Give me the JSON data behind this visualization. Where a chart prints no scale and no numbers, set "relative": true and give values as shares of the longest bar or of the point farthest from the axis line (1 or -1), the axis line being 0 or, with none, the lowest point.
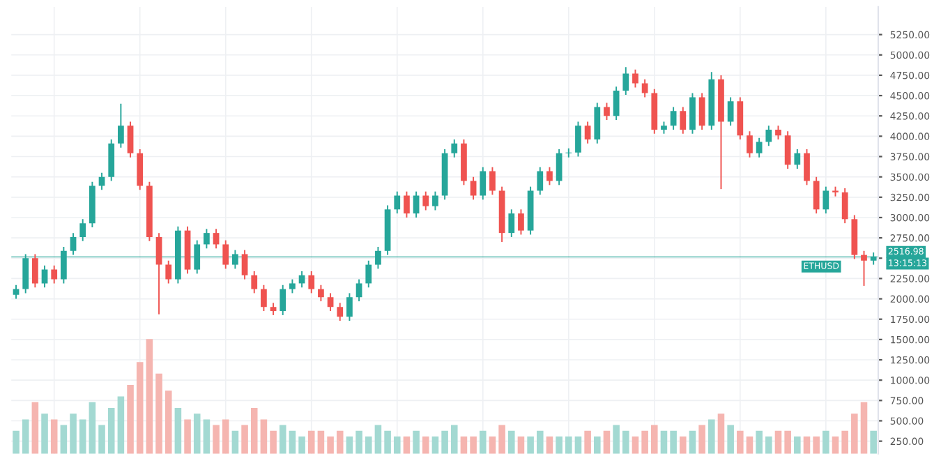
{
  "chart_data": [
    {
      "type": "candlestick",
      "categories": [
        null,
        null,
        null,
        null,
        null,
        null,
        null,
        null,
        null,
        null,
        null,
        null,
        null,
        null,
        null,
        null,
        null,
        null,
        null,
        null,
        null,
        null,
        null,
        null,
        null,
        null,
        null,
        null,
        null,
        null,
        null,
        null,
        null,
        null,
        null,
        null,
        null,
        null,
        null,
        null,
        null,
        null,
        null,
        null,
        null,
        null,
        null,
        null,
        null,
        null,
        null,
        null,
        null,
        null,
        null,
        null,
        null,
        null,
        null,
        null,
        null,
        null,
        null,
        null,
        null,
        null,
        null,
        null,
        null,
        null,
        null,
        null,
        null,
        null,
        null,
        null,
        null,
        null,
        null,
        null,
        null,
        null,
        null,
        null,
        null,
        null,
        null,
        null,
        null,
        null,
        null
      ],
      "ohlc": [
        [
          2050,
          2170,
          2000,
          2120
        ],
        [
          2120,
          2550,
          2070,
          2500
        ],
        [
          2500,
          2550,
          2140,
          2190
        ],
        [
          2190,
          2410,
          2140,
          2360
        ],
        [
          2360,
          2410,
          2190,
          2240
        ],
        [
          2240,
          2640,
          2190,
          2590
        ],
        [
          2590,
          2810,
          2540,
          2760
        ],
        [
          2760,
          2980,
          2710,
          2930
        ],
        [
          2930,
          3440,
          2880,
          3390
        ],
        [
          3390,
          3550,
          3340,
          3500
        ],
        [
          3500,
          3960,
          3450,
          3910
        ],
        [
          3910,
          4400,
          3860,
          4130
        ],
        [
          4130,
          4180,
          3740,
          3790
        ],
        [
          3790,
          3840,
          3340,
          3390
        ],
        [
          3390,
          3440,
          2710,
          2760
        ],
        [
          2760,
          2810,
          1810,
          2420
        ],
        [
          2420,
          2470,
          2190,
          2240
        ],
        [
          2240,
          2890,
          2190,
          2840
        ],
        [
          2840,
          2890,
          2310,
          2360
        ],
        [
          2360,
          2720,
          2310,
          2670
        ],
        [
          2670,
          2860,
          2620,
          2810
        ],
        [
          2810,
          2860,
          2620,
          2670
        ],
        [
          2670,
          2720,
          2370,
          2420
        ],
        [
          2420,
          2600,
          2370,
          2550
        ],
        [
          2550,
          2600,
          2240,
          2290
        ],
        [
          2290,
          2340,
          2070,
          2120
        ],
        [
          2120,
          2170,
          1850,
          1900
        ],
        [
          1900,
          1950,
          1800,
          1850
        ],
        [
          1850,
          2170,
          1800,
          2120
        ],
        [
          2120,
          2240,
          2070,
          2190
        ],
        [
          2190,
          2340,
          2140,
          2290
        ],
        [
          2290,
          2340,
          2070,
          2120
        ],
        [
          2120,
          2170,
          1970,
          2020
        ],
        [
          2020,
          2070,
          1850,
          1900
        ],
        [
          1900,
          1950,
          1730,
          1780
        ],
        [
          1780,
          2070,
          1730,
          2020
        ],
        [
          2020,
          2240,
          1970,
          2190
        ],
        [
          2190,
          2470,
          2140,
          2420
        ],
        [
          2420,
          2640,
          2370,
          2590
        ],
        [
          2590,
          3150,
          2540,
          3100
        ],
        [
          3100,
          3320,
          3050,
          3270
        ],
        [
          3270,
          3320,
          3000,
          3050
        ],
        [
          3050,
          3320,
          3000,
          3270
        ],
        [
          3270,
          3320,
          3090,
          3140
        ],
        [
          3140,
          3320,
          3090,
          3270
        ],
        [
          3270,
          3840,
          3220,
          3790
        ],
        [
          3790,
          3960,
          3740,
          3910
        ],
        [
          3910,
          3960,
          3400,
          3450
        ],
        [
          3450,
          3500,
          3220,
          3270
        ],
        [
          3270,
          3620,
          3220,
          3570
        ],
        [
          3570,
          3620,
          3280,
          3330
        ],
        [
          3330,
          3380,
          2700,
          2810
        ],
        [
          2810,
          3100,
          2760,
          3050
        ],
        [
          3050,
          3100,
          2790,
          2840
        ],
        [
          2840,
          3380,
          2790,
          3330
        ],
        [
          3330,
          3620,
          3280,
          3570
        ],
        [
          3570,
          3620,
          3400,
          3450
        ],
        [
          3450,
          3840,
          3400,
          3790
        ],
        [
          3790,
          3850,
          3740,
          3800
        ],
        [
          3800,
          4180,
          3750,
          4130
        ],
        [
          4130,
          4180,
          3910,
          3960
        ],
        [
          3960,
          4410,
          3910,
          4360
        ],
        [
          4360,
          4410,
          4200,
          4250
        ],
        [
          4250,
          4610,
          4200,
          4560
        ],
        [
          4560,
          4850,
          4510,
          4770
        ],
        [
          4770,
          4820,
          4600,
          4650
        ],
        [
          4650,
          4700,
          4480,
          4530
        ],
        [
          4530,
          4580,
          4030,
          4080
        ],
        [
          4080,
          4180,
          4030,
          4130
        ],
        [
          4130,
          4360,
          4080,
          4310
        ],
        [
          4310,
          4360,
          4030,
          4080
        ],
        [
          4080,
          4530,
          4030,
          4480
        ],
        [
          4480,
          4530,
          4080,
          4130
        ],
        [
          4130,
          4790,
          4080,
          4700
        ],
        [
          4700,
          4750,
          3350,
          4180
        ],
        [
          4180,
          4480,
          4130,
          4430
        ],
        [
          4430,
          4480,
          3960,
          4010
        ],
        [
          4010,
          4060,
          3740,
          3790
        ],
        [
          3790,
          3980,
          3740,
          3930
        ],
        [
          3930,
          4130,
          3880,
          4080
        ],
        [
          4080,
          4130,
          3960,
          4010
        ],
        [
          4010,
          4060,
          3600,
          3650
        ],
        [
          3650,
          3840,
          3600,
          3790
        ],
        [
          3790,
          3840,
          3400,
          3450
        ],
        [
          3450,
          3500,
          3050,
          3100
        ],
        [
          3100,
          3380,
          3050,
          3330
        ],
        [
          3330,
          3380,
          3260,
          3310
        ],
        [
          3310,
          3360,
          2930,
          2980
        ],
        [
          2980,
          3030,
          2490,
          2540
        ],
        [
          2540,
          2590,
          2160,
          2470
        ],
        [
          2470,
          2570,
          2420,
          2520
        ]
      ],
      "colors": [
        "#26a69a",
        "#26a69a",
        "#ef5350",
        "#26a69a",
        "#ef5350",
        "#26a69a",
        "#26a69a",
        "#26a69a",
        "#26a69a",
        "#26a69a",
        "#26a69a",
        "#26a69a",
        "#ef5350",
        "#ef5350",
        "#ef5350",
        "#ef5350",
        "#ef5350",
        "#26a69a",
        "#ef5350",
        "#26a69a",
        "#26a69a",
        "#ef5350",
        "#ef5350",
        "#26a69a",
        "#ef5350",
        "#ef5350",
        "#ef5350",
        "#ef5350",
        "#26a69a",
        "#26a69a",
        "#26a69a",
        "#ef5350",
        "#ef5350",
        "#ef5350",
        "#ef5350",
        "#26a69a",
        "#26a69a",
        "#26a69a",
        "#26a69a",
        "#26a69a",
        "#26a69a",
        "#ef5350",
        "#26a69a",
        "#ef5350",
        "#26a69a",
        "#26a69a",
        "#26a69a",
        "#ef5350",
        "#ef5350",
        "#26a69a",
        "#ef5350",
        "#ef5350",
        "#26a69a",
        "#ef5350",
        "#26a69a",
        "#26a69a",
        "#ef5350",
        "#26a69a",
        "#26a69a",
        "#26a69a",
        "#ef5350",
        "#26a69a",
        "#ef5350",
        "#26a69a",
        "#26a69a",
        "#ef5350",
        "#ef5350",
        "#ef5350",
        "#26a69a",
        "#26a69a",
        "#ef5350",
        "#26a69a",
        "#ef5350",
        "#26a69a",
        "#ef5350",
        "#26a69a",
        "#ef5350",
        "#ef5350",
        "#26a69a",
        "#26a69a",
        "#ef5350",
        "#ef5350",
        "#26a69a",
        "#ef5350",
        "#ef5350",
        "#26a69a",
        "#ef5350",
        "#ef5350",
        "#ef5350",
        "#ef5350",
        "#26a69a"
      ],
      "ylim": [
        95,
        5590
      ],
      "yticks": [
        {
          "value": 250,
          "label": "250.00"
        },
        {
          "value": 500,
          "label": "500.00"
        },
        {
          "value": 750,
          "label": "750.00"
        },
        {
          "value": 1000,
          "label": "1000.00"
        },
        {
          "value": 1250,
          "label": "1250.00"
        },
        {
          "value": 1500,
          "label": "1500.00"
        },
        {
          "value": 1750,
          "label": "1750.00"
        },
        {
          "value": 2000,
          "label": "2000.00"
        },
        {
          "value": 2250,
          "label": "2250.00"
        },
        {
          "value": 2500,
          "label": null
        },
        {
          "value": 2750,
          "label": "2750.00"
        },
        {
          "value": 3000,
          "label": "3000.00"
        },
        {
          "value": 3250,
          "label": "3250.00"
        },
        {
          "value": 3500,
          "label": "3500.00"
        },
        {
          "value": 3750,
          "label": "3750.00"
        },
        {
          "value": 4000,
          "label": "4000.00"
        },
        {
          "value": 4250,
          "label": "4250.00"
        },
        {
          "value": 4500,
          "label": "4500.00"
        },
        {
          "value": 4750,
          "label": "4750.00"
        },
        {
          "value": 5000,
          "label": "5000.00"
        },
        {
          "value": 5250,
          "label": "5250.00"
        }
      ],
      "grid": true,
      "ref_lines": [
        {
          "axis": "y",
          "value": 2516.98,
          "label": "ETHUSD",
          "color": "#26a69a"
        }
      ],
      "annotations": [
        "2516.98",
        "13:15:13"
      ]
    },
    {
      "type": "bar",
      "relative": true,
      "categories": [
        null,
        null,
        null,
        null,
        null,
        null,
        null,
        null,
        null,
        null,
        null,
        null,
        null,
        null,
        null,
        null,
        null,
        null,
        null,
        null,
        null,
        null,
        null,
        null,
        null,
        null,
        null,
        null,
        null,
        null,
        null,
        null,
        null,
        null,
        null,
        null,
        null,
        null,
        null,
        null,
        null,
        null,
        null,
        null,
        null,
        null,
        null,
        null,
        null,
        null,
        null,
        null,
        null,
        null,
        null,
        null,
        null,
        null,
        null,
        null,
        null,
        null,
        null,
        null,
        null,
        null,
        null,
        null,
        null,
        null,
        null,
        null,
        null,
        null,
        null,
        null,
        null,
        null,
        null,
        null,
        null,
        null,
        null,
        null,
        null,
        null,
        null,
        null,
        null,
        null,
        null
      ],
      "values": [
        0.2,
        0.3,
        0.45,
        0.35,
        0.3,
        0.25,
        0.35,
        0.3,
        0.45,
        0.25,
        0.4,
        0.5,
        0.6,
        0.8,
        1,
        0.7,
        0.55,
        0.4,
        0.3,
        0.35,
        0.3,
        0.25,
        0.3,
        0.2,
        0.25,
        0.4,
        0.3,
        0.2,
        0.25,
        0.2,
        0.15,
        0.2,
        0.2,
        0.15,
        0.2,
        0.15,
        0.2,
        0.15,
        0.25,
        0.2,
        0.15,
        0.15,
        0.2,
        0.15,
        0.15,
        0.2,
        0.25,
        0.15,
        0.15,
        0.2,
        0.15,
        0.25,
        0.2,
        0.15,
        0.15,
        0.2,
        0.15,
        0.15,
        0.15,
        0.15,
        0.2,
        0.15,
        0.2,
        0.25,
        0.2,
        0.15,
        0.2,
        0.25,
        0.2,
        0.2,
        0.15,
        0.2,
        0.25,
        0.3,
        0.35,
        0.25,
        0.2,
        0.15,
        0.2,
        0.15,
        0.2,
        0.2,
        0.15,
        0.15,
        0.15,
        0.2,
        0.15,
        0.2,
        0.35,
        0.45,
        0.2
      ],
      "colors": [
        "#a3d9d2",
        "#a3d9d2",
        "#f5b5b0",
        "#a3d9d2",
        "#f5b5b0",
        "#a3d9d2",
        "#a3d9d2",
        "#a3d9d2",
        "#a3d9d2",
        "#a3d9d2",
        "#a3d9d2",
        "#a3d9d2",
        "#f5b5b0",
        "#f5b5b0",
        "#f5b5b0",
        "#f5b5b0",
        "#f5b5b0",
        "#a3d9d2",
        "#f5b5b0",
        "#a3d9d2",
        "#a3d9d2",
        "#f5b5b0",
        "#f5b5b0",
        "#a3d9d2",
        "#f5b5b0",
        "#f5b5b0",
        "#f5b5b0",
        "#f5b5b0",
        "#a3d9d2",
        "#a3d9d2",
        "#a3d9d2",
        "#f5b5b0",
        "#f5b5b0",
        "#f5b5b0",
        "#f5b5b0",
        "#a3d9d2",
        "#a3d9d2",
        "#a3d9d2",
        "#a3d9d2",
        "#a3d9d2",
        "#a3d9d2",
        "#f5b5b0",
        "#a3d9d2",
        "#f5b5b0",
        "#a3d9d2",
        "#a3d9d2",
        "#a3d9d2",
        "#f5b5b0",
        "#f5b5b0",
        "#a3d9d2",
        "#f5b5b0",
        "#f5b5b0",
        "#a3d9d2",
        "#f5b5b0",
        "#a3d9d2",
        "#a3d9d2",
        "#f5b5b0",
        "#a3d9d2",
        "#a3d9d2",
        "#a3d9d2",
        "#f5b5b0",
        "#a3d9d2",
        "#f5b5b0",
        "#a3d9d2",
        "#a3d9d2",
        "#f5b5b0",
        "#f5b5b0",
        "#f5b5b0",
        "#a3d9d2",
        "#a3d9d2",
        "#f5b5b0",
        "#a3d9d2",
        "#f5b5b0",
        "#a3d9d2",
        "#f5b5b0",
        "#a3d9d2",
        "#f5b5b0",
        "#f5b5b0",
        "#a3d9d2",
        "#a3d9d2",
        "#f5b5b0",
        "#f5b5b0",
        "#a3d9d2",
        "#f5b5b0",
        "#f5b5b0",
        "#a3d9d2",
        "#f5b5b0",
        "#f5b5b0",
        "#f5b5b0",
        "#f5b5b0",
        "#a3d9d2"
      ]
    }
  ]
}
